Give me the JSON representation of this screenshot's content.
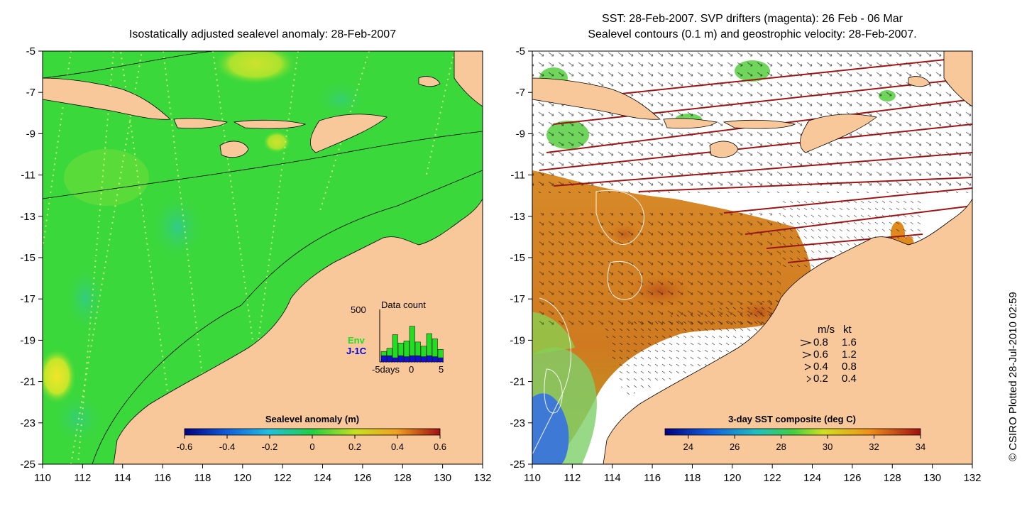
{
  "left_panel": {
    "title": "Isostatically adjusted sealevel anomaly: 28-Feb-2007",
    "colorbar": {
      "label": "Sealevel anomaly (m)",
      "ticks": [
        "-0.6",
        "-0.4",
        "-0.2",
        "0",
        "0.2",
        "0.4",
        "0.6"
      ]
    },
    "data_count": {
      "title": "Data count",
      "ymax": "500",
      "series_env": "Env",
      "series_j1c": "J-1C",
      "xlabel_left": "-5days",
      "xlabel_mid": "0",
      "xlabel_right": "5",
      "env_values": [
        40,
        70,
        220,
        120,
        150,
        280,
        130,
        100,
        210,
        170,
        80
      ],
      "j1c_values": [
        60,
        60,
        40,
        60,
        50,
        60,
        60,
        50,
        60,
        50,
        40
      ]
    }
  },
  "right_panel": {
    "title_line1": "SST: 28-Feb-2007. SVP drifters (magenta): 26 Feb - 06 Mar",
    "title_line2": "Sealevel contours (0.1 m) and geostrophic velocity: 28-Feb-2007.",
    "colorbar": {
      "label": "3-day SST composite (deg C)",
      "ticks": [
        "24",
        "26",
        "28",
        "30",
        "32",
        "34"
      ]
    },
    "velocity_legend": {
      "header_ms": "m/s",
      "header_kt": "kt",
      "rows": [
        {
          "ms": "0.8",
          "kt": "1.6"
        },
        {
          "ms": "0.6",
          "kt": "1.2"
        },
        {
          "ms": "0.4",
          "kt": "0.8"
        },
        {
          "ms": "0.2",
          "kt": "0.4"
        }
      ]
    }
  },
  "axes": {
    "lat_ticks": [
      "-5",
      "-7",
      "-9",
      "-11",
      "-13",
      "-15",
      "-17",
      "-19",
      "-21",
      "-23",
      "-25"
    ],
    "lon_ticks": [
      "110",
      "112",
      "114",
      "116",
      "118",
      "120",
      "122",
      "124",
      "126",
      "128",
      "130",
      "132"
    ]
  },
  "credit": "© CSIRO Plotted 28-Jul-2010 02:59",
  "colors": {
    "land": "#f9c89a",
    "ocean_green": "#3bd83b",
    "sst_orange": "#e08a1e",
    "sst_blue": "#3f79d6"
  }
}
